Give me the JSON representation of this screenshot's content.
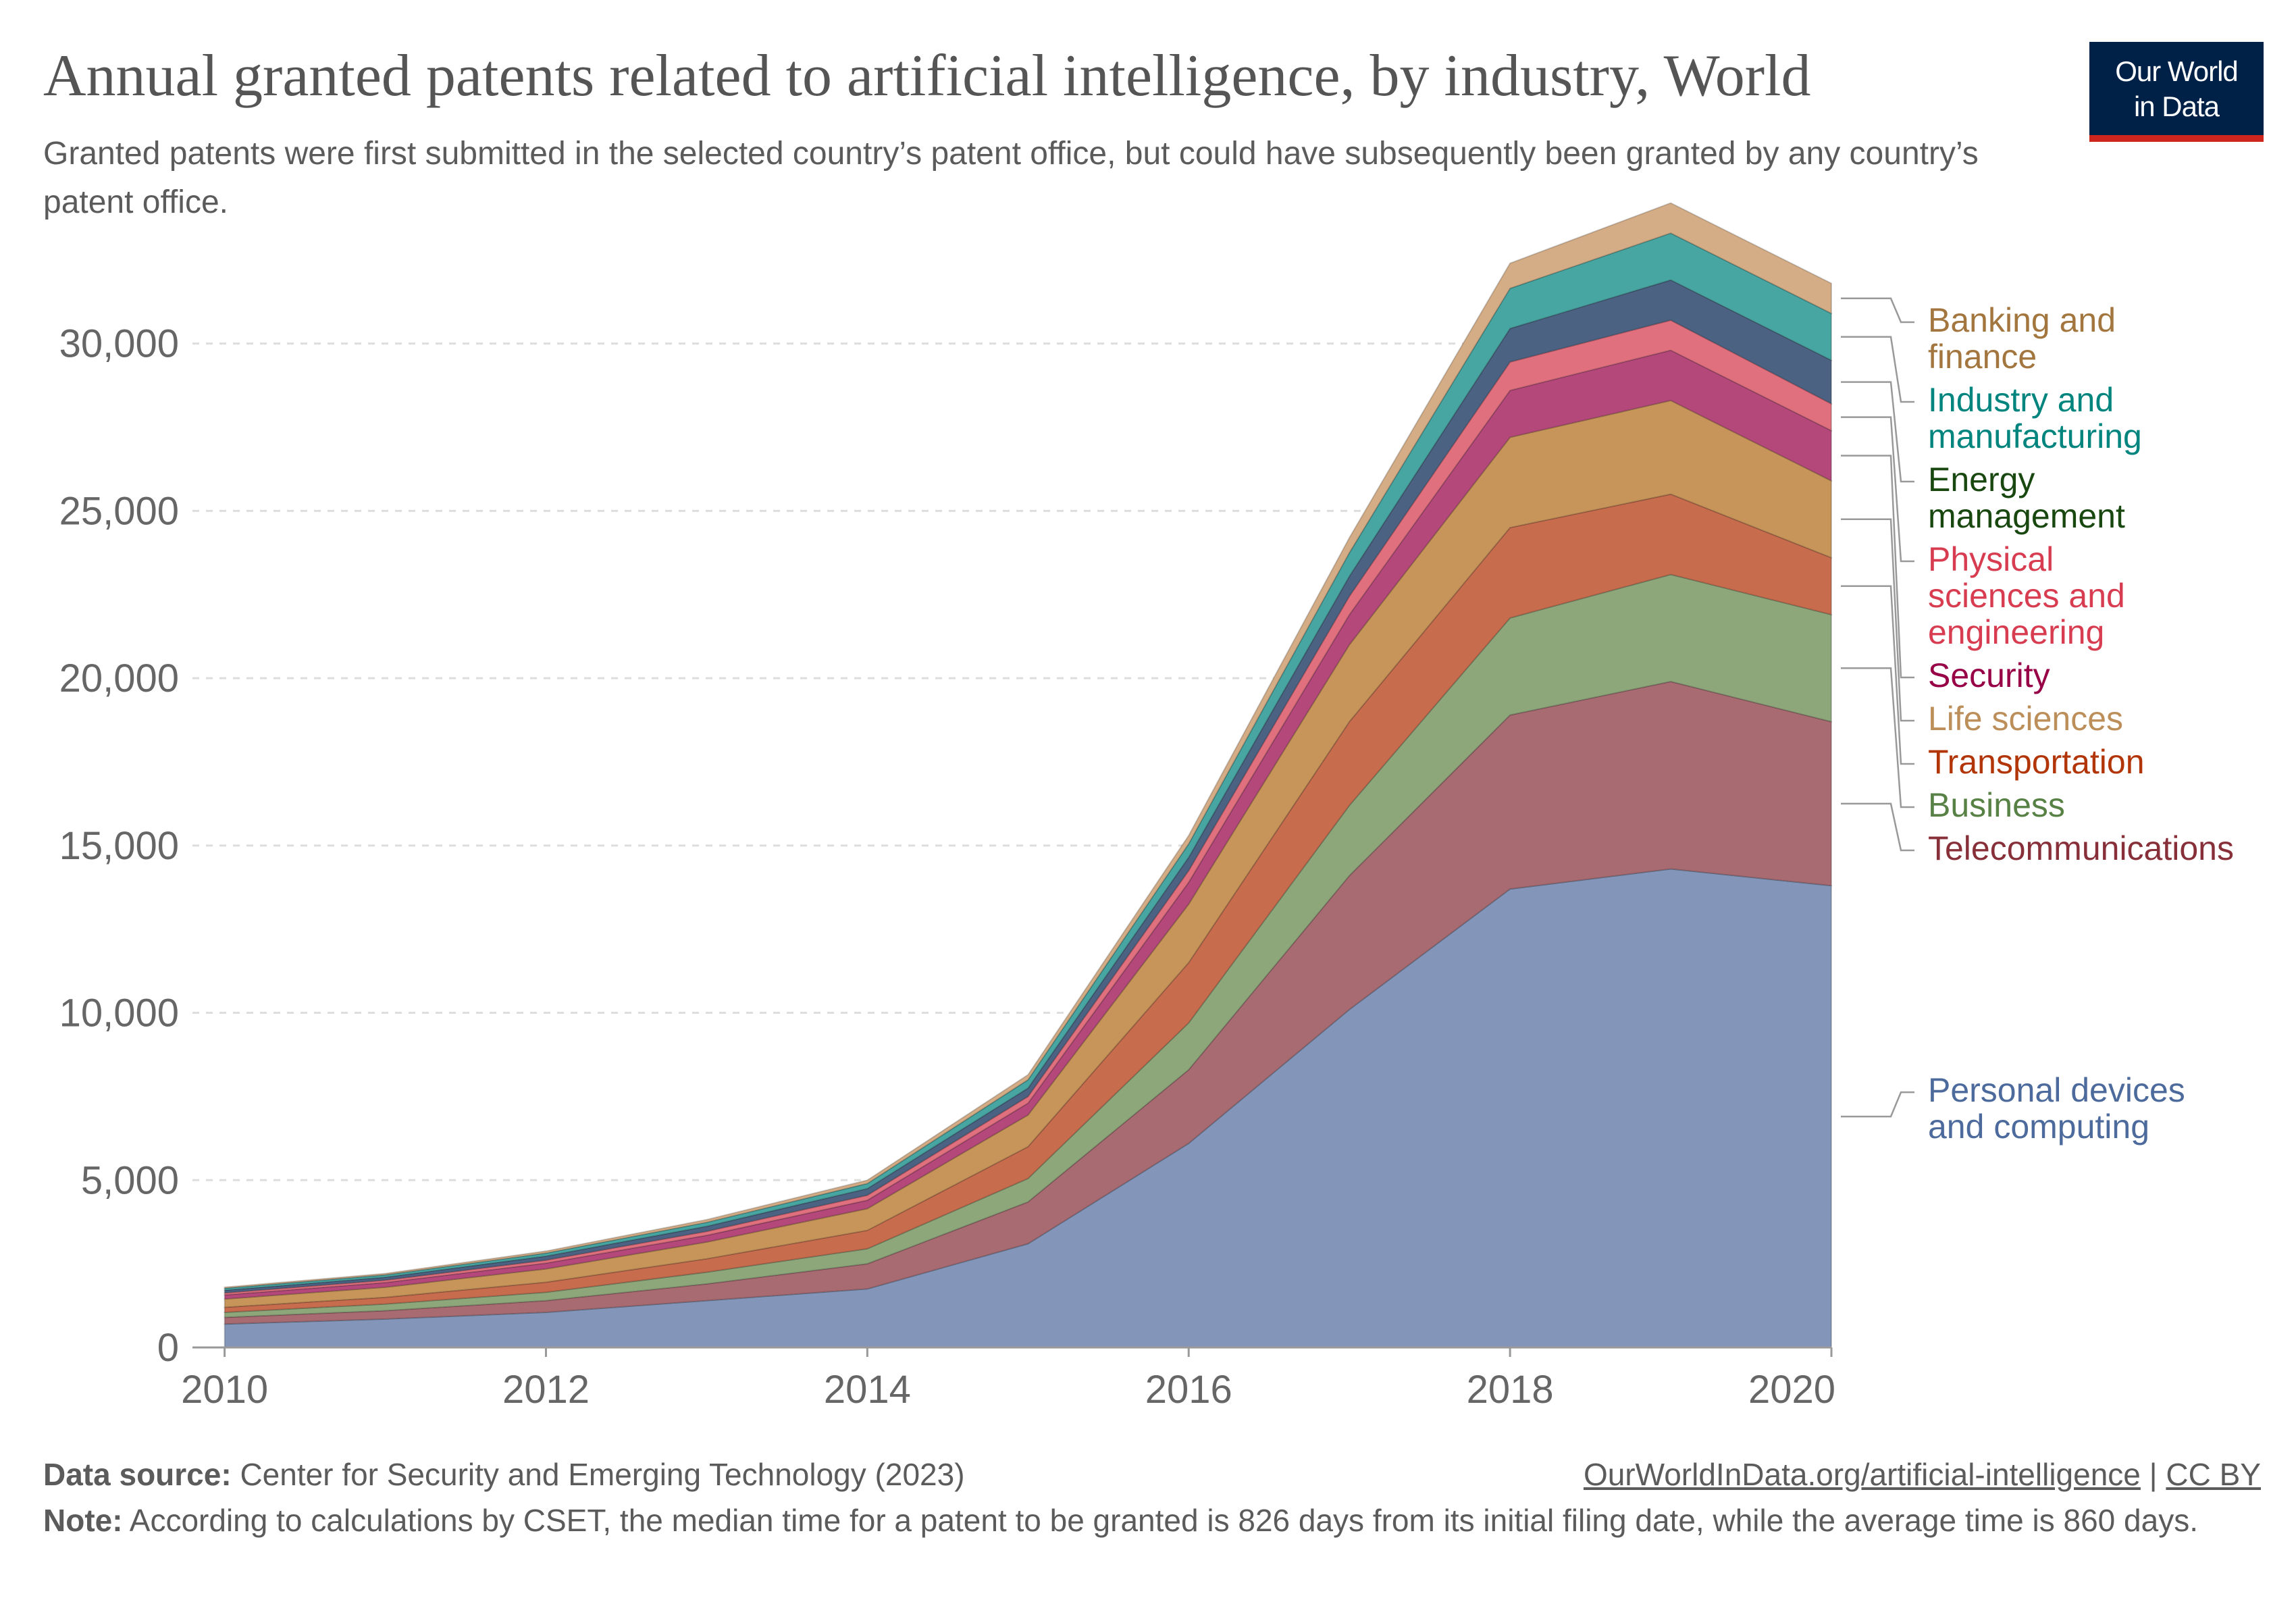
{
  "header": {
    "title": "Annual granted patents related to artificial intelligence, by industry, World",
    "subtitle": "Granted patents were first submitted in the selected country’s patent office, but could have subsequently been granted by any country’s patent office.",
    "logo_line1": "Our World",
    "logo_line2": "in Data"
  },
  "footer": {
    "source_label": "Data source:",
    "source_text": "Center for Security and Emerging Technology (2023)",
    "link_text": "OurWorldInData.org/artificial-intelligence",
    "separator": "|",
    "license": "CC BY",
    "note_label": "Note:",
    "note_text": "According to calculations by CSET, the median time for a patent to be granted is 826 days from its initial filing date, while the average time is 860 days."
  },
  "colors": {
    "logo_bg": "#002147",
    "logo_accent": "#ce261e",
    "grid": "#dddddd",
    "axis_text": "#666666"
  },
  "chart_data": {
    "type": "area",
    "stacked": true,
    "x": [
      2010,
      2011,
      2012,
      2013,
      2014,
      2015,
      2016,
      2017,
      2018,
      2019,
      2020
    ],
    "xlim": [
      2009.8,
      2020
    ],
    "ylim": [
      0,
      33000
    ],
    "y_ticks": [
      0,
      5000,
      10000,
      15000,
      20000,
      25000,
      30000
    ],
    "y_tick_labels": [
      "0",
      "5,000",
      "10,000",
      "15,000",
      "20,000",
      "25,000",
      "30,000"
    ],
    "x_ticks": [
      2010,
      2012,
      2014,
      2016,
      2018,
      2020
    ],
    "x_tick_labels": [
      "2010",
      "2012",
      "2014",
      "2016",
      "2018",
      "2020"
    ],
    "grid": "horizontal dashed",
    "legend": "right",
    "series": [
      {
        "name": "Personal devices and computing",
        "color": "#8396b9",
        "label_color": "#4c6a9c",
        "label_lines": [
          "Personal devices",
          "and computing"
        ],
        "values": [
          700,
          850,
          1050,
          1400,
          1750,
          3100,
          6100,
          10100,
          13700,
          14300,
          13800
        ]
      },
      {
        "name": "Telecommunications",
        "color": "#a86b72",
        "label_color": "#883039",
        "label_lines": [
          "Telecommunications"
        ],
        "values": [
          200,
          250,
          350,
          500,
          750,
          1250,
          2200,
          4000,
          5200,
          5600,
          4900
        ]
      },
      {
        "name": "Business",
        "color": "#8da77b",
        "label_color": "#578145",
        "label_lines": [
          "Business"
        ],
        "values": [
          150,
          200,
          250,
          350,
          450,
          700,
          1400,
          2100,
          2900,
          3200,
          3200
        ]
      },
      {
        "name": "Transportation",
        "color": "#c86c4e",
        "label_color": "#b13507",
        "label_lines": [
          "Transportation"
        ],
        "values": [
          150,
          200,
          300,
          400,
          550,
          950,
          1800,
          2500,
          2700,
          2400,
          1700
        ]
      },
      {
        "name": "Life sciences",
        "color": "#c79559",
        "label_color": "#bc8e5a",
        "label_lines": [
          "Life sciences"
        ],
        "values": [
          250,
          300,
          400,
          500,
          650,
          950,
          1750,
          2300,
          2700,
          2800,
          2300
        ]
      },
      {
        "name": "Security",
        "color": "#b5487b",
        "label_color": "#970046",
        "label_lines": [
          "Security"
        ],
        "values": [
          120,
          140,
          170,
          200,
          250,
          350,
          650,
          900,
          1400,
          1500,
          1500
        ]
      },
      {
        "name": "Physical sciences and engineering",
        "color": "#e1707e",
        "label_color": "#d73c50",
        "label_lines": [
          "Physical",
          "sciences and",
          "engineering"
        ],
        "values": [
          60,
          70,
          90,
          120,
          150,
          200,
          350,
          550,
          850,
          900,
          800
        ]
      },
      {
        "name": "Energy management",
        "color": "#4b6283",
        "label_color": "#18470f",
        "label_lines": [
          "Energy",
          "management"
        ],
        "values": [
          80,
          90,
          120,
          150,
          200,
          250,
          400,
          600,
          1000,
          1200,
          1300
        ]
      },
      {
        "name": "Industry and manufacturing",
        "color": "#47a6a2",
        "label_color": "#00847e",
        "label_lines": [
          "Industry and",
          "manufacturing"
        ],
        "values": [
          60,
          70,
          90,
          120,
          150,
          250,
          400,
          700,
          1200,
          1400,
          1400
        ]
      },
      {
        "name": "Banking and finance",
        "color": "#d4ad86",
        "label_color": "#a2763e",
        "label_lines": [
          "Banking and",
          "finance"
        ],
        "values": [
          30,
          40,
          60,
          80,
          100,
          150,
          250,
          450,
          750,
          900,
          900
        ]
      }
    ]
  }
}
